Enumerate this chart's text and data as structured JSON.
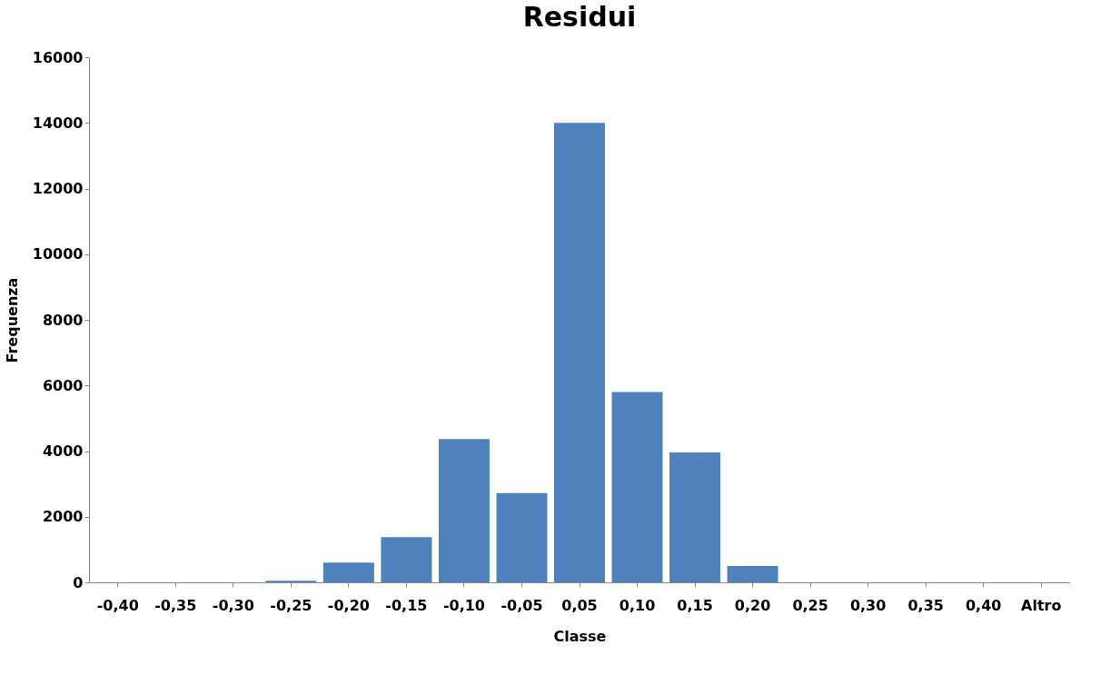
{
  "chart_data": {
    "type": "bar",
    "title": "Residui",
    "xlabel": "Classe",
    "ylabel": "Frequenza",
    "categories": [
      "-0,40",
      "-0,35",
      "-0,30",
      "-0,25",
      "-0,20",
      "-0,15",
      "-0,10",
      "-0,05",
      "0,05",
      "0,10",
      "0,15",
      "0,20",
      "0,25",
      "0,30",
      "0,35",
      "0,40",
      "Altro"
    ],
    "values": [
      0,
      0,
      0,
      50,
      600,
      1380,
      4370,
      2720,
      14000,
      5800,
      3960,
      500,
      0,
      0,
      0,
      0,
      0
    ],
    "color": "#4f81bd",
    "ylim": [
      0,
      16000
    ],
    "yticks": [
      0,
      2000,
      4000,
      6000,
      8000,
      10000,
      12000,
      14000,
      16000
    ],
    "grid": false
  }
}
